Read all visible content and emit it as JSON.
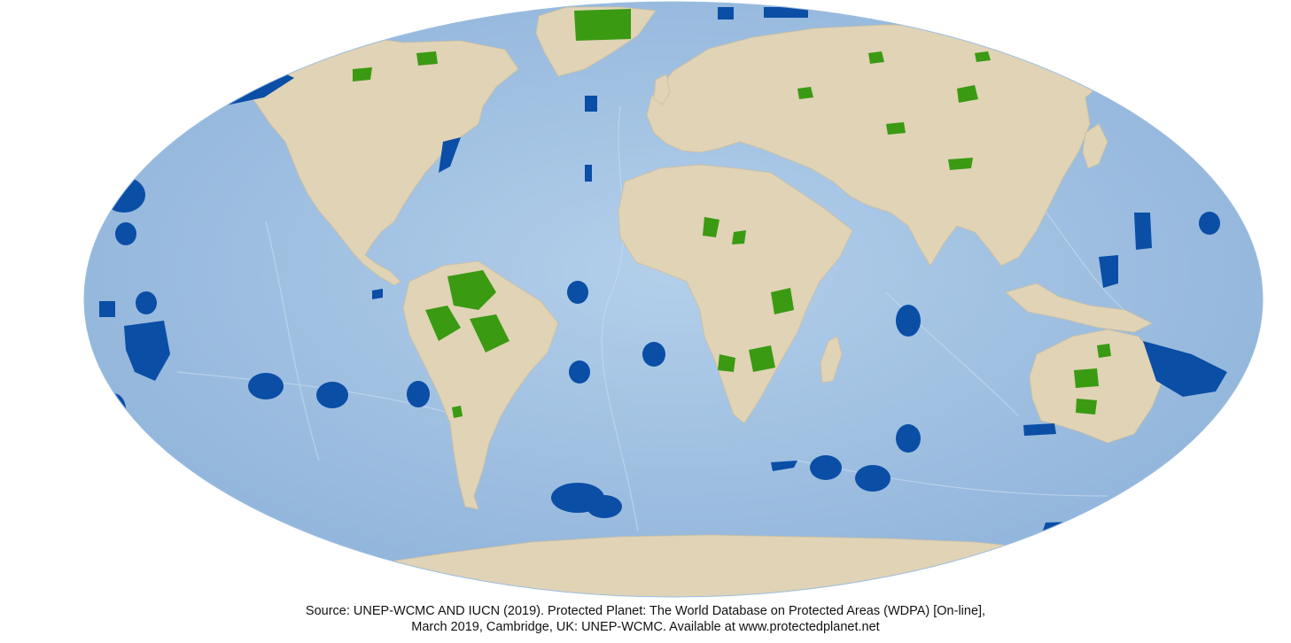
{
  "map": {
    "colors": {
      "ocean": "#a9c7e6",
      "ocean_deep": "#8fb3da",
      "land": "#e0d3b6",
      "protected_terrestrial": "#3a9a12",
      "protected_marine": "#0a4ea6"
    },
    "legend": []
  },
  "caption": {
    "line1": "Source: UNEP-WCMC AND IUCN (2019). Protected Planet: The World Database on Protected Areas (WDPA) [On-line],",
    "line2": "March 2019, Cambridge, UK: UNEP-WCMC. Available at www.protectedplanet.net"
  }
}
